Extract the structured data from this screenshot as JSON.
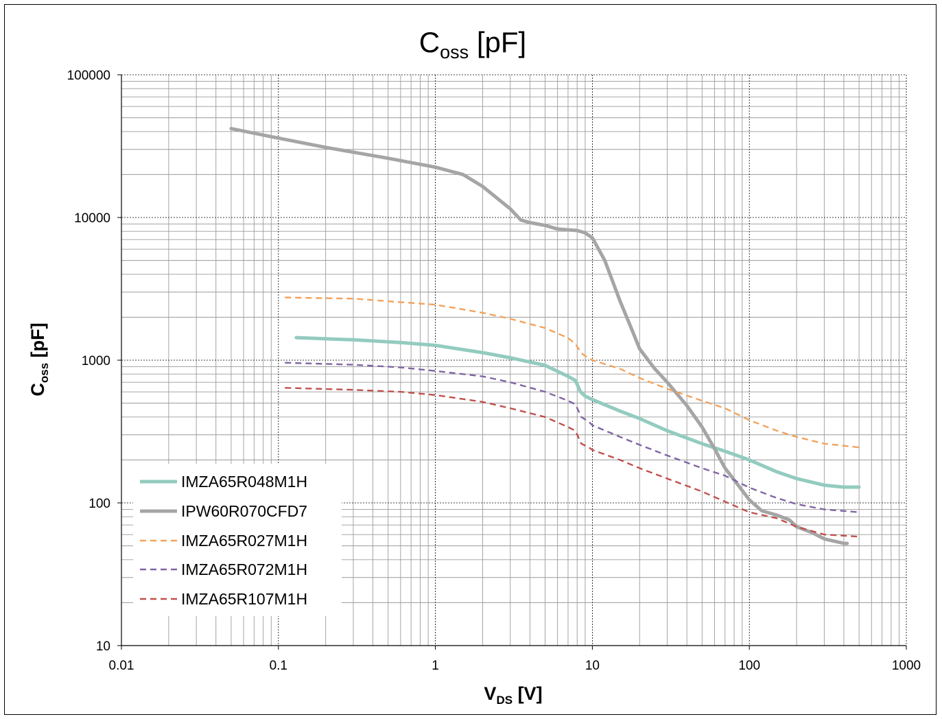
{
  "chart_data": {
    "type": "line",
    "title": {
      "main": "C",
      "sub": "oss",
      "rest": " [pF]"
    },
    "xlabel": {
      "main": "V",
      "sub": "DS",
      "rest": " [V]"
    },
    "ylabel": {
      "main": "C",
      "sub": "oss",
      "rest": " [pF]"
    },
    "x_scale": "log",
    "y_scale": "log",
    "xlim": [
      0.01,
      1000
    ],
    "ylim": [
      10,
      100000
    ],
    "x_ticks": [
      "0.01",
      "0.1",
      "1",
      "10",
      "100",
      "1000"
    ],
    "y_ticks": [
      "10",
      "100",
      "1000",
      "10000",
      "100000"
    ],
    "grid": true,
    "legend_position": "bottom-left",
    "series": [
      {
        "name": "IMZA65R048M1H",
        "color": "#93cbbf",
        "style": "solid-thick",
        "points": [
          [
            0.13,
            1440
          ],
          [
            0.3,
            1390
          ],
          [
            0.6,
            1330
          ],
          [
            1,
            1270
          ],
          [
            2,
            1130
          ],
          [
            3,
            1040
          ],
          [
            5,
            920
          ],
          [
            7,
            770
          ],
          [
            7.8,
            720
          ],
          [
            8.4,
            600
          ],
          [
            9,
            560
          ],
          [
            10,
            530
          ],
          [
            15,
            440
          ],
          [
            20,
            390
          ],
          [
            30,
            320
          ],
          [
            50,
            260
          ],
          [
            70,
            230
          ],
          [
            100,
            200
          ],
          [
            150,
            165
          ],
          [
            200,
            148
          ],
          [
            300,
            133
          ],
          [
            400,
            129
          ],
          [
            500,
            129
          ]
        ]
      },
      {
        "name": "IPW60R070CFD7",
        "color": "#a5a5a5",
        "style": "solid-thick",
        "points": [
          [
            0.05,
            42000
          ],
          [
            0.1,
            36000
          ],
          [
            0.2,
            31000
          ],
          [
            0.5,
            26000
          ],
          [
            1,
            22500
          ],
          [
            1.5,
            20000
          ],
          [
            2,
            16500
          ],
          [
            3,
            11500
          ],
          [
            3.5,
            9600
          ],
          [
            4,
            9200
          ],
          [
            5,
            8800
          ],
          [
            6,
            8300
          ],
          [
            8,
            8100
          ],
          [
            9,
            7800
          ],
          [
            10,
            7200
          ],
          [
            12,
            5000
          ],
          [
            15,
            2600
          ],
          [
            18,
            1600
          ],
          [
            20,
            1200
          ],
          [
            25,
            870
          ],
          [
            30,
            700
          ],
          [
            40,
            480
          ],
          [
            50,
            340
          ],
          [
            60,
            240
          ],
          [
            70,
            175
          ],
          [
            80,
            145
          ],
          [
            100,
            105
          ],
          [
            120,
            88
          ],
          [
            150,
            82
          ],
          [
            180,
            76
          ],
          [
            200,
            68
          ],
          [
            250,
            62
          ],
          [
            300,
            56
          ],
          [
            400,
            52
          ],
          [
            420,
            52
          ]
        ]
      },
      {
        "name": "IMZA65R027M1H",
        "color": "#f4a15a",
        "style": "dashed",
        "points": [
          [
            0.11,
            2750
          ],
          [
            0.3,
            2700
          ],
          [
            0.6,
            2550
          ],
          [
            1,
            2450
          ],
          [
            2,
            2150
          ],
          [
            3,
            1950
          ],
          [
            5,
            1680
          ],
          [
            7,
            1430
          ],
          [
            7.8,
            1300
          ],
          [
            8.5,
            1120
          ],
          [
            9.5,
            1030
          ],
          [
            10,
            1000
          ],
          [
            15,
            870
          ],
          [
            20,
            750
          ],
          [
            30,
            630
          ],
          [
            50,
            520
          ],
          [
            70,
            460
          ],
          [
            100,
            380
          ],
          [
            150,
            320
          ],
          [
            200,
            290
          ],
          [
            300,
            260
          ],
          [
            500,
            245
          ]
        ]
      },
      {
        "name": "IMZA65R072M1H",
        "color": "#8064a2",
        "style": "dashed",
        "points": [
          [
            0.11,
            960
          ],
          [
            0.3,
            930
          ],
          [
            0.6,
            890
          ],
          [
            1,
            840
          ],
          [
            2,
            770
          ],
          [
            3,
            700
          ],
          [
            5,
            600
          ],
          [
            7,
            520
          ],
          [
            7.8,
            490
          ],
          [
            8.5,
            400
          ],
          [
            9.5,
            370
          ],
          [
            10,
            350
          ],
          [
            15,
            290
          ],
          [
            20,
            255
          ],
          [
            30,
            215
          ],
          [
            50,
            175
          ],
          [
            70,
            155
          ],
          [
            100,
            128
          ],
          [
            150,
            108
          ],
          [
            200,
            98
          ],
          [
            300,
            90
          ],
          [
            500,
            86
          ]
        ]
      },
      {
        "name": "IMZA65R107M1H",
        "color": "#c0504d",
        "style": "dashed",
        "points": [
          [
            0.11,
            640
          ],
          [
            0.3,
            620
          ],
          [
            0.6,
            600
          ],
          [
            1,
            570
          ],
          [
            2,
            510
          ],
          [
            3,
            460
          ],
          [
            5,
            400
          ],
          [
            7,
            340
          ],
          [
            7.8,
            320
          ],
          [
            8.5,
            260
          ],
          [
            9.5,
            245
          ],
          [
            10,
            235
          ],
          [
            15,
            200
          ],
          [
            20,
            175
          ],
          [
            30,
            148
          ],
          [
            50,
            120
          ],
          [
            70,
            102
          ],
          [
            100,
            86
          ],
          [
            150,
            78
          ],
          [
            200,
            68
          ],
          [
            300,
            60
          ],
          [
            500,
            58
          ]
        ]
      }
    ]
  }
}
